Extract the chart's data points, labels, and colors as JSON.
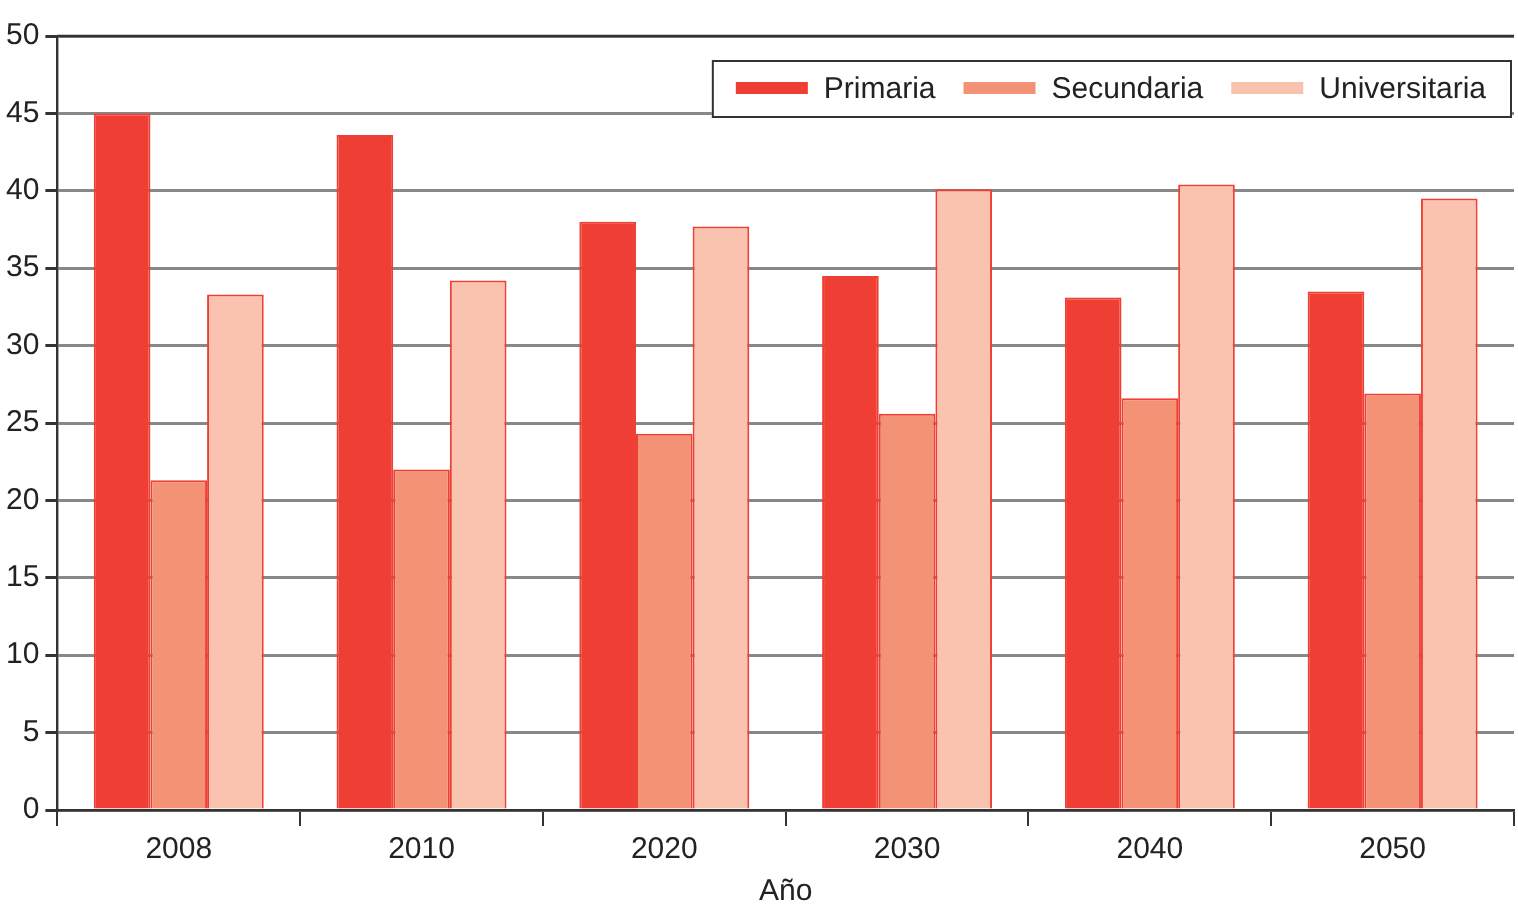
{
  "chart_data": {
    "type": "bar",
    "xlabel": "Año",
    "categories": [
      "2008",
      "2010",
      "2020",
      "2030",
      "2040",
      "2050"
    ],
    "series": [
      {
        "name": "Primaria",
        "color": "#ef3e33",
        "values": [
          45,
          43.6,
          38,
          34.5,
          33.1,
          33.5
        ]
      },
      {
        "name": "Secundaria",
        "color": "#f49276",
        "values": [
          21.3,
          22,
          24.3,
          25.6,
          26.6,
          26.9
        ]
      },
      {
        "name": "Universitaria",
        "color": "#f9c3b0",
        "values": [
          33.3,
          34.2,
          37.7,
          40.1,
          40.4,
          39.5
        ]
      }
    ],
    "ylim": [
      0,
      50
    ],
    "yticks": [
      0,
      5,
      10,
      15,
      20,
      25,
      30,
      35,
      40,
      45,
      50
    ],
    "grid": "y",
    "legend": "top right"
  }
}
